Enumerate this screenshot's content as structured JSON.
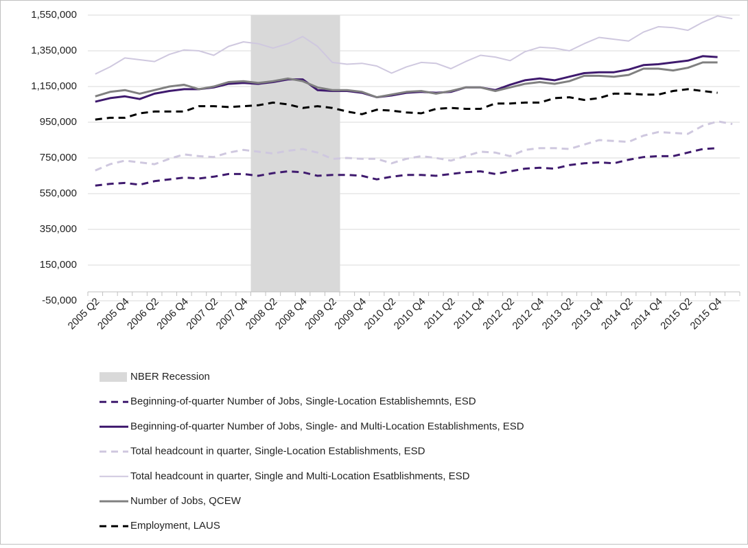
{
  "chart_data": {
    "type": "line",
    "categories": [
      "2005 Q2",
      null,
      "2005 Q4",
      null,
      "2006 Q2",
      null,
      "2006 Q4",
      null,
      "2007 Q2",
      null,
      "2007 Q4",
      null,
      "2008 Q2",
      null,
      "2008 Q4",
      null,
      "2009 Q2",
      null,
      "2009 Q4",
      null,
      "2010 Q2",
      null,
      "2010 Q4",
      null,
      "2011 Q2",
      null,
      "2011 Q4",
      null,
      "2012 Q2",
      null,
      "2012 Q4",
      null,
      "2013 Q2",
      null,
      "2013 Q4",
      null,
      "2014 Q2",
      null,
      "2014 Q4",
      null,
      "2015 Q2",
      null,
      "2015 Q4",
      null
    ],
    "series": [
      {
        "name": "NBER Recession",
        "type": "bar",
        "color": "#d9d9d9",
        "values": [
          null,
          null,
          null,
          null,
          null,
          null,
          null,
          null,
          null,
          null,
          null,
          1550000,
          1550000,
          1550000,
          1550000,
          1550000,
          1550000,
          null,
          null,
          null,
          null,
          null,
          null,
          null,
          null,
          null,
          null,
          null,
          null,
          null,
          null,
          null,
          null,
          null,
          null,
          null,
          null,
          null,
          null,
          null,
          null,
          null,
          null,
          null
        ]
      },
      {
        "name": "Beginning-of-quarter Number of Jobs, Single-Location Establishemnts, ESD",
        "color": "#3f1a6e",
        "dashed": true,
        "values": [
          595000,
          605000,
          610000,
          600000,
          620000,
          630000,
          640000,
          635000,
          645000,
          660000,
          660000,
          650000,
          665000,
          675000,
          670000,
          650000,
          655000,
          655000,
          650000,
          630000,
          645000,
          655000,
          655000,
          650000,
          660000,
          670000,
          675000,
          660000,
          675000,
          690000,
          695000,
          690000,
          710000,
          720000,
          725000,
          720000,
          740000,
          755000,
          760000,
          760000,
          780000,
          800000,
          805000,
          null
        ]
      },
      {
        "name": "Beginning-of-quarter Number of Jobs, Single- and Multi-Location Establishments, ESD",
        "color": "#3f1a6e",
        "dashed": false,
        "values": [
          1065000,
          1085000,
          1095000,
          1080000,
          1110000,
          1125000,
          1135000,
          1135000,
          1145000,
          1165000,
          1170000,
          1165000,
          1175000,
          1190000,
          1190000,
          1130000,
          1125000,
          1125000,
          1115000,
          1090000,
          1100000,
          1115000,
          1120000,
          1115000,
          1120000,
          1145000,
          1145000,
          1130000,
          1160000,
          1185000,
          1195000,
          1185000,
          1205000,
          1225000,
          1230000,
          1230000,
          1245000,
          1270000,
          1275000,
          1285000,
          1295000,
          1320000,
          1315000,
          null
        ]
      },
      {
        "name": "Total headcount in quarter, Single-Location Establishments, ESD",
        "color": "#cfc8df",
        "dashed": true,
        "values": [
          680000,
          715000,
          735000,
          725000,
          715000,
          745000,
          770000,
          760000,
          755000,
          780000,
          795000,
          785000,
          775000,
          790000,
          800000,
          780000,
          745000,
          750000,
          745000,
          745000,
          720000,
          745000,
          760000,
          750000,
          735000,
          760000,
          785000,
          780000,
          760000,
          795000,
          805000,
          805000,
          800000,
          825000,
          850000,
          845000,
          840000,
          875000,
          895000,
          890000,
          885000,
          930000,
          955000,
          940000
        ]
      },
      {
        "name": "Total headcount in quarter, Single and Multi-Location Esatblishments, ESD",
        "color": "#cfc8df",
        "dashed": false,
        "thin": true,
        "values": [
          1220000,
          1260000,
          1310000,
          1300000,
          1290000,
          1330000,
          1355000,
          1350000,
          1325000,
          1375000,
          1400000,
          1390000,
          1365000,
          1390000,
          1430000,
          1375000,
          1285000,
          1275000,
          1280000,
          1265000,
          1225000,
          1260000,
          1285000,
          1280000,
          1250000,
          1290000,
          1325000,
          1315000,
          1295000,
          1345000,
          1370000,
          1365000,
          1350000,
          1390000,
          1425000,
          1415000,
          1405000,
          1455000,
          1485000,
          1480000,
          1465000,
          1510000,
          1545000,
          1530000
        ]
      },
      {
        "name": "Number of Jobs, QCEW",
        "color": "#808080",
        "dashed": false,
        "values": [
          1095000,
          1120000,
          1130000,
          1110000,
          1130000,
          1150000,
          1160000,
          1135000,
          1150000,
          1175000,
          1180000,
          1170000,
          1180000,
          1195000,
          1180000,
          1145000,
          1130000,
          1130000,
          1120000,
          1090000,
          1105000,
          1120000,
          1125000,
          1110000,
          1125000,
          1145000,
          1145000,
          1125000,
          1145000,
          1165000,
          1175000,
          1165000,
          1180000,
          1210000,
          1210000,
          1205000,
          1215000,
          1250000,
          1250000,
          1240000,
          1255000,
          1285000,
          1285000,
          null
        ]
      },
      {
        "name": "Employment, LAUS",
        "color": "#000000",
        "dashed": true,
        "values": [
          965000,
          975000,
          975000,
          1000000,
          1010000,
          1010000,
          1010000,
          1040000,
          1040000,
          1035000,
          1040000,
          1045000,
          1060000,
          1050000,
          1030000,
          1040000,
          1030000,
          1010000,
          995000,
          1020000,
          1015000,
          1005000,
          1000000,
          1025000,
          1030000,
          1025000,
          1025000,
          1055000,
          1055000,
          1060000,
          1060000,
          1085000,
          1090000,
          1075000,
          1085000,
          1110000,
          1110000,
          1105000,
          1105000,
          1125000,
          1135000,
          1125000,
          1115000,
          null
        ]
      }
    ],
    "ylim": [
      -50000,
      1550000
    ],
    "yticks": [
      {
        "value": -50000,
        "label": "-50,000"
      },
      {
        "value": 150000,
        "label": "150,000"
      },
      {
        "value": 350000,
        "label": "350,000"
      },
      {
        "value": 550000,
        "label": "550,000"
      },
      {
        "value": 750000,
        "label": "750,000"
      },
      {
        "value": 950000,
        "label": "950,000"
      },
      {
        "value": 1150000,
        "label": "1,150,000"
      },
      {
        "value": 1350000,
        "label": "1,350,000"
      },
      {
        "value": 1550000,
        "label": "1,550,000"
      }
    ],
    "grid": true,
    "legend": "bottom"
  }
}
